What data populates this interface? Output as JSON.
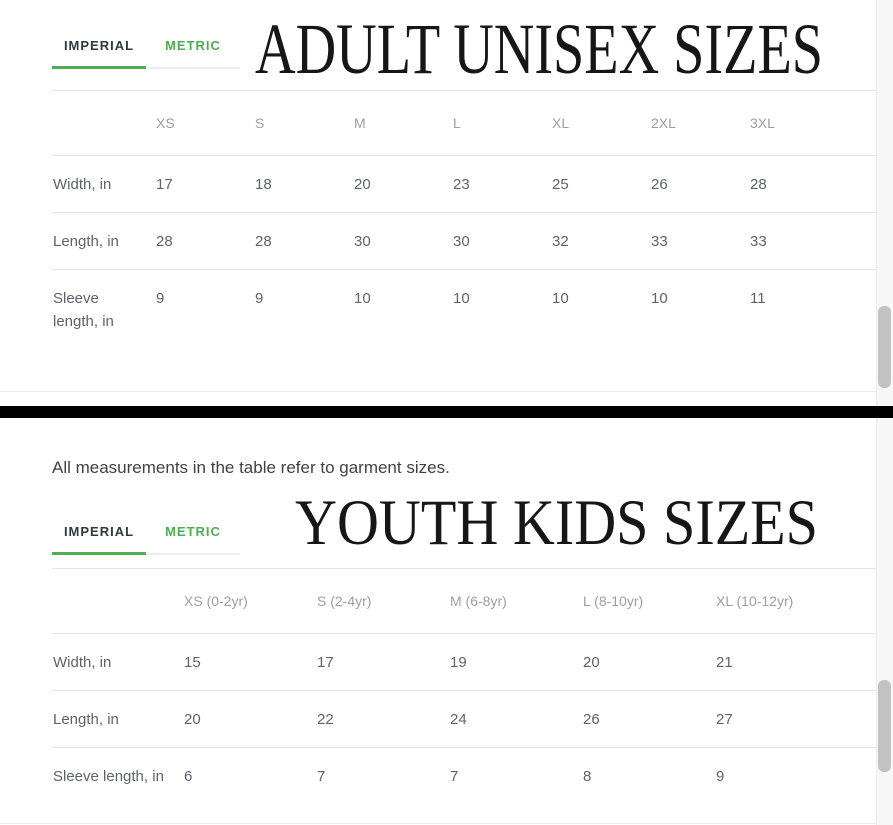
{
  "note": "All measurements in the table refer to garment sizes.",
  "colors": {
    "accent_green": "#4caf50",
    "divider_black": "#000000",
    "column_header_gray": "#9e9e9e",
    "cell_text_gray": "#5f6368",
    "rule_gray": "#e6e6e6",
    "scrollbar_thumb": "#c2c2c2",
    "title_black": "#161616"
  },
  "adult_section": {
    "title": "ADULT UNISEX SIZES",
    "tabs": [
      {
        "label": "IMPERIAL",
        "active": true
      },
      {
        "label": "METRIC",
        "active": false
      }
    ],
    "table": {
      "columns": [
        "XS",
        "S",
        "M",
        "L",
        "XL",
        "2XL",
        "3XL"
      ],
      "rows": [
        {
          "label": "Width, in",
          "values": [
            "17",
            "18",
            "20",
            "23",
            "25",
            "26",
            "28"
          ]
        },
        {
          "label": "Length, in",
          "values": [
            "28",
            "28",
            "30",
            "30",
            "32",
            "33",
            "33"
          ]
        },
        {
          "label": "Sleeve length, in",
          "values": [
            "9",
            "9",
            "10",
            "10",
            "10",
            "10",
            "11"
          ]
        }
      ]
    }
  },
  "youth_section": {
    "title": "YOUTH KIDS SIZES",
    "tabs": [
      {
        "label": "IMPERIAL",
        "active": true
      },
      {
        "label": "METRIC",
        "active": false
      }
    ],
    "table": {
      "columns": [
        "XS (0-2yr)",
        "S (2-4yr)",
        "M (6-8yr)",
        "L (8-10yr)",
        "XL (10-12yr)"
      ],
      "rows": [
        {
          "label": "Width, in",
          "values": [
            "15",
            "17",
            "19",
            "20",
            "21"
          ]
        },
        {
          "label": "Length, in",
          "values": [
            "20",
            "22",
            "24",
            "26",
            "27"
          ]
        },
        {
          "label": "Sleeve length, in",
          "values": [
            "6",
            "7",
            "7",
            "8",
            "9"
          ]
        }
      ]
    }
  }
}
